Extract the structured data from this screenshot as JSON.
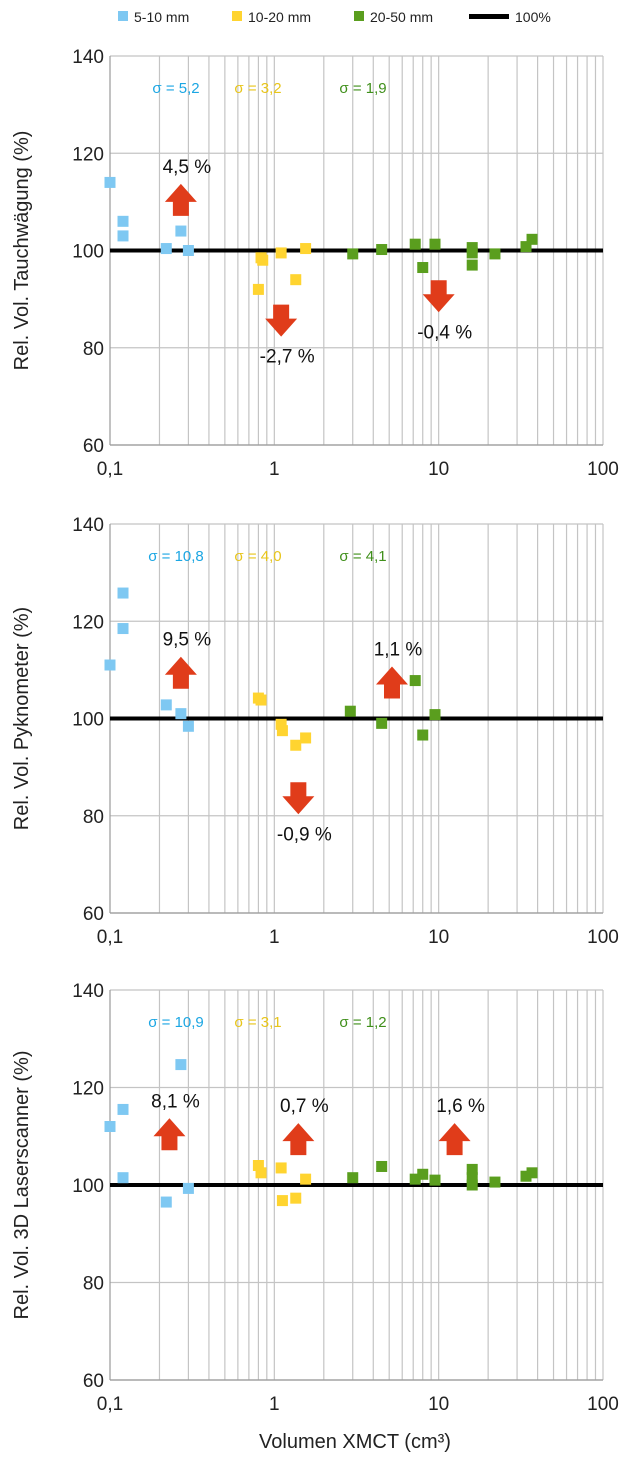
{
  "legend": [
    {
      "label": "5-10 mm",
      "color": "#7ec8f2"
    },
    {
      "label": "10-20 mm",
      "color": "#ffd430"
    },
    {
      "label": "20-50 mm",
      "color": "#5a9e1e"
    },
    {
      "label": "100%",
      "color": "#000000"
    }
  ],
  "xlabel": "Volumen XMCT (cm³)",
  "x_ticks": [
    "0,1",
    "1",
    "10",
    "100"
  ],
  "arrow_color": "#e03c1a",
  "chart_data": [
    {
      "type": "scatter",
      "ylabel": "Rel. Vol. Tauchwägung (%)",
      "xscale": "log",
      "xlim": [
        0.1,
        100
      ],
      "ylim": [
        60,
        140
      ],
      "y_ticks": [
        "60",
        "80",
        "100",
        "120",
        "140"
      ],
      "reference_line": 100,
      "sigma": [
        "σ = 5,2",
        "σ = 3,2",
        "σ = 1,9"
      ],
      "series": [
        {
          "points": [
            [
              0.1,
              114
            ],
            [
              0.12,
              106
            ],
            [
              0.12,
              103
            ],
            [
              0.22,
              100.4
            ],
            [
              0.27,
              104
            ],
            [
              0.3,
              100
            ]
          ]
        },
        {
          "points": [
            [
              0.8,
              92
            ],
            [
              0.83,
              98.5
            ],
            [
              0.85,
              98
            ],
            [
              1.1,
              99.5
            ],
            [
              1.35,
              94
            ],
            [
              1.55,
              100.4
            ]
          ]
        },
        {
          "points": [
            [
              3,
              99.3
            ],
            [
              4.5,
              100.2
            ],
            [
              7.2,
              101.3
            ],
            [
              8,
              96.5
            ],
            [
              9.5,
              101.3
            ],
            [
              16,
              100.6
            ],
            [
              16,
              99.5
            ],
            [
              16,
              97
            ],
            [
              22,
              99.3
            ],
            [
              34,
              100.8
            ],
            [
              37,
              102.3
            ]
          ]
        }
      ],
      "annotations": [
        {
          "text": "4,5 %",
          "direction": "up",
          "x": 0.27,
          "y": 110
        },
        {
          "text": "-2,7 %",
          "direction": "down",
          "x": 1.1,
          "y": 86
        },
        {
          "text": "-0,4 %",
          "direction": "down",
          "x": 10,
          "y": 91
        }
      ]
    },
    {
      "type": "scatter",
      "ylabel": "Rel. Vol. Pyknometer (%)",
      "xscale": "log",
      "xlim": [
        0.1,
        100
      ],
      "ylim": [
        60,
        140
      ],
      "y_ticks": [
        "60",
        "80",
        "100",
        "120",
        "140"
      ],
      "reference_line": 100,
      "sigma": [
        "σ = 10,8",
        "σ = 4,0",
        "σ = 4,1"
      ],
      "series": [
        {
          "points": [
            [
              0.1,
              111
            ],
            [
              0.12,
              118.5
            ],
            [
              0.12,
              125.8
            ],
            [
              0.22,
              102.8
            ],
            [
              0.27,
              101
            ],
            [
              0.3,
              98.4
            ]
          ]
        },
        {
          "points": [
            [
              0.8,
              104.2
            ],
            [
              0.83,
              103.8
            ],
            [
              1.1,
              98.8
            ],
            [
              1.12,
              97.5
            ],
            [
              1.35,
              94.5
            ],
            [
              1.55,
              96
            ]
          ]
        },
        {
          "points": [
            [
              2.9,
              101.5
            ],
            [
              4.5,
              99
            ],
            [
              7.2,
              107.8
            ],
            [
              8,
              96.6
            ],
            [
              9.5,
              100.8
            ]
          ]
        }
      ],
      "annotations": [
        {
          "text": "9,5 %",
          "direction": "up",
          "x": 0.27,
          "y": 109
        },
        {
          "text": "-0,9 %",
          "direction": "down",
          "x": 1.4,
          "y": 84
        },
        {
          "text": "1,1 %",
          "direction": "up",
          "x": 5.2,
          "y": 107
        }
      ]
    },
    {
      "type": "scatter",
      "ylabel": "Rel. Vol. 3D Laserscanner (%)",
      "xscale": "log",
      "xlim": [
        0.1,
        100
      ],
      "ylim": [
        60,
        140
      ],
      "y_ticks": [
        "60",
        "80",
        "100",
        "120",
        "140"
      ],
      "reference_line": 100,
      "sigma": [
        "σ = 10,9",
        "σ = 3,1",
        "σ = 1,2"
      ],
      "series": [
        {
          "points": [
            [
              0.1,
              112
            ],
            [
              0.12,
              115.5
            ],
            [
              0.12,
              101.5
            ],
            [
              0.22,
              96.5
            ],
            [
              0.27,
              124.7
            ],
            [
              0.3,
              99.3
            ]
          ]
        },
        {
          "points": [
            [
              0.8,
              104
            ],
            [
              0.83,
              102.5
            ],
            [
              1.1,
              103.5
            ],
            [
              1.12,
              96.8
            ],
            [
              1.35,
              97.3
            ],
            [
              1.55,
              101.2
            ]
          ]
        },
        {
          "points": [
            [
              3,
              101.5
            ],
            [
              4.5,
              103.8
            ],
            [
              7.2,
              101.2
            ],
            [
              8,
              102.2
            ],
            [
              9.5,
              101
            ],
            [
              16,
              103.2
            ],
            [
              16,
              101.5
            ],
            [
              16,
              100
            ],
            [
              22,
              100.6
            ],
            [
              34,
              101.8
            ],
            [
              37,
              102.5
            ]
          ]
        }
      ],
      "annotations": [
        {
          "text": "8,1 %",
          "direction": "up",
          "x": 0.23,
          "y": 110
        },
        {
          "text": "0,7 %",
          "direction": "up",
          "x": 1.4,
          "y": 109
        },
        {
          "text": "1,6 %",
          "direction": "up",
          "x": 12.5,
          "y": 109
        }
      ]
    }
  ]
}
